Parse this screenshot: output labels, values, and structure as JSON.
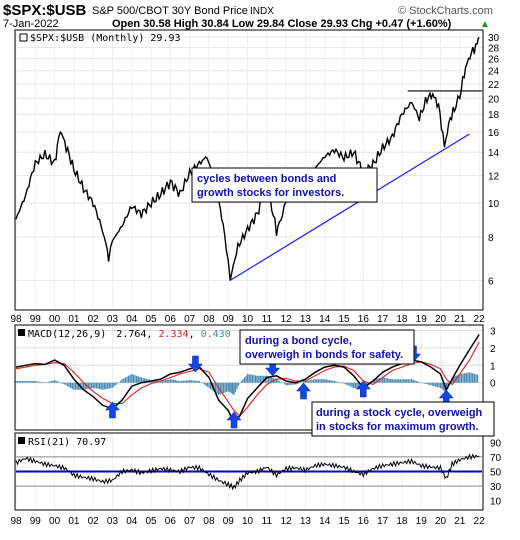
{
  "header": {
    "symbol": "$SPX:$USB",
    "description": "S&P 500/CBOT 30Y Bond Price",
    "exchange": "INDX",
    "date": "7-Jan-2022",
    "watermark": "© StockCharts.com",
    "ohlc_text": "Open 30.58  High 30.84  Low 29.84  Close 29.93  Chg +0.47 (+1.60%)",
    "up_arrow": "▲"
  },
  "main_panel": {
    "legend": "$SPX:$USB (Monthly) 29.93",
    "annotation_lines": [
      "cycles between bonds and",
      "growth stocks for investors."
    ]
  },
  "macd_panel": {
    "legend_prefix": "MACD(12,26,9)",
    "macd_value": "2.764",
    "signal_value": "2.334",
    "hist_value": "0.430",
    "annotation_bond": [
      "during a bond cycle,",
      "overweigh in bonds for safety."
    ],
    "annotation_stock": [
      "during a stock cycle, overweigh",
      "in stocks for maximum growth."
    ]
  },
  "rsi_panel": {
    "legend": "RSI(21) 70.97"
  },
  "colors": {
    "price_line": "#000000",
    "trendline": "#1a1aff",
    "macd_line": "#000000",
    "signal_line": "#e02020",
    "histogram": "#4a8ab0",
    "arrow_fill": "#1446e6",
    "rsi_line": "#000000",
    "rsi_midline": "#0000cc"
  },
  "chart_data": [
    {
      "type": "line",
      "title": "$SPX:$USB (Monthly) 29.93",
      "x_tick_labels": [
        "98",
        "99",
        "00",
        "01",
        "02",
        "03",
        "04",
        "05",
        "06",
        "07",
        "08",
        "09",
        "10",
        "11",
        "12",
        "13",
        "14",
        "15",
        "16",
        "17",
        "18",
        "19",
        "20",
        "21",
        "22"
      ],
      "y_tick_labels": [
        "6",
        "8",
        "10",
        "12",
        "14",
        "16",
        "18",
        "20",
        "22",
        "24",
        "26",
        "28",
        "30"
      ],
      "ylim": [
        5,
        31
      ],
      "scale": "log",
      "series": [
        {
          "x": [
            1998.0,
            1998.5,
            1999.0,
            1999.5,
            2000.0,
            2000.3,
            2000.6,
            2001.0,
            2001.5,
            2002.0,
            2002.5,
            2002.8,
            2003.0,
            2003.5,
            2004.0,
            2004.5,
            2005.0,
            2005.5,
            2006.0,
            2006.5,
            2007.0,
            2007.5,
            2007.9,
            2008.5,
            2008.9,
            2009.1,
            2009.5,
            2010.0,
            2010.5,
            2011.0,
            2011.5,
            2011.8,
            2012.0,
            2012.5,
            2013.0,
            2013.5,
            2014.0,
            2014.5,
            2015.0,
            2015.5,
            2016.0,
            2016.5,
            2017.0,
            2017.5,
            2018.0,
            2018.5,
            2018.9,
            2019.3,
            2019.6,
            2019.9,
            2020.2,
            2020.5,
            2020.8,
            2021.0,
            2021.3,
            2021.6,
            2021.9,
            2022.0
          ],
          "y": [
            9.0,
            10.5,
            13.0,
            13.8,
            13.0,
            16.2,
            14.5,
            12.5,
            11.0,
            10.0,
            8.3,
            7.0,
            7.8,
            8.6,
            9.8,
            9.3,
            10.0,
            10.6,
            11.5,
            10.6,
            12.2,
            13.0,
            13.6,
            10.2,
            7.5,
            6.0,
            7.5,
            8.4,
            9.3,
            11.2,
            8.3,
            9.2,
            10.4,
            11.4,
            11.0,
            12.6,
            13.6,
            14.2,
            13.5,
            14.0,
            12.2,
            12.9,
            14.4,
            15.5,
            18.0,
            19.5,
            17.5,
            20.0,
            20.5,
            19.0,
            14.5,
            17.5,
            19.0,
            20.3,
            24.5,
            27.0,
            28.5,
            29.93
          ]
        }
      ],
      "resistance_level": 21,
      "trendline": {
        "x": [
          2009.1,
          2021.5
        ],
        "y": [
          6.0,
          15.8
        ]
      }
    },
    {
      "type": "line",
      "title": "MACD(12,26,9) 2.764, 2.334, 0.430",
      "x_tick_labels": [],
      "y_tick_labels": [
        "0",
        "1",
        "2",
        "3"
      ],
      "ylim": [
        -2.6,
        3.2
      ],
      "series": [
        {
          "name": "MACD(12,26,9) 2.764",
          "x": [
            1998.0,
            1998.5,
            1999.0,
            1999.5,
            2000.0,
            2000.5,
            2001.0,
            2001.5,
            2002.0,
            2002.5,
            2003.0,
            2003.5,
            2004.0,
            2004.5,
            2005.0,
            2005.5,
            2006.0,
            2006.5,
            2007.0,
            2007.5,
            2008.0,
            2008.5,
            2009.0,
            2009.3,
            2009.6,
            2010.0,
            2010.5,
            2011.0,
            2011.5,
            2012.0,
            2012.5,
            2013.0,
            2013.5,
            2014.0,
            2014.5,
            2015.0,
            2015.5,
            2016.0,
            2016.5,
            2017.0,
            2017.5,
            2018.0,
            2018.5,
            2019.0,
            2019.5,
            2020.0,
            2020.3,
            2020.6,
            2021.0,
            2021.5,
            2022.0
          ],
          "y": [
            0.9,
            1.0,
            1.1,
            1.05,
            1.3,
            1.0,
            0.2,
            -0.4,
            -0.8,
            -1.3,
            -1.5,
            -1.0,
            -0.2,
            0.0,
            0.1,
            0.2,
            0.5,
            0.6,
            0.8,
            0.9,
            0.3,
            -1.0,
            -1.6,
            -2.3,
            -1.9,
            -0.9,
            -0.3,
            0.3,
            0.4,
            0.1,
            0.0,
            0.2,
            0.6,
            0.9,
            1.0,
            0.9,
            0.4,
            -0.3,
            0.1,
            0.6,
            0.9,
            1.1,
            1.3,
            1.2,
            0.9,
            0.5,
            -0.4,
            0.2,
            1.0,
            1.9,
            2.764
          ]
        },
        {
          "name": "2.334",
          "x": [
            1998.0,
            1998.5,
            1999.0,
            1999.5,
            2000.0,
            2000.5,
            2001.0,
            2001.5,
            2002.0,
            2002.5,
            2003.0,
            2003.5,
            2004.0,
            2004.5,
            2005.0,
            2005.5,
            2006.0,
            2006.5,
            2007.0,
            2007.5,
            2008.0,
            2008.5,
            2009.0,
            2009.3,
            2009.6,
            2010.0,
            2010.5,
            2011.0,
            2011.5,
            2012.0,
            2012.5,
            2013.0,
            2013.5,
            2014.0,
            2014.5,
            2015.0,
            2015.5,
            2016.0,
            2016.5,
            2017.0,
            2017.5,
            2018.0,
            2018.5,
            2019.0,
            2019.5,
            2020.0,
            2020.3,
            2020.6,
            2021.0,
            2021.5,
            2022.0
          ],
          "y": [
            0.8,
            0.9,
            1.0,
            1.05,
            1.15,
            1.1,
            0.6,
            0.0,
            -0.5,
            -0.9,
            -1.2,
            -1.2,
            -0.7,
            -0.3,
            -0.05,
            0.1,
            0.3,
            0.5,
            0.65,
            0.8,
            0.6,
            -0.3,
            -1.1,
            -1.6,
            -1.9,
            -1.4,
            -0.7,
            -0.1,
            0.2,
            0.25,
            0.1,
            0.1,
            0.4,
            0.7,
            0.9,
            0.95,
            0.7,
            0.1,
            -0.1,
            0.3,
            0.7,
            0.9,
            1.1,
            1.2,
            1.05,
            0.8,
            0.2,
            -0.1,
            0.5,
            1.3,
            2.334
          ]
        }
      ],
      "histogram": {
        "name": "0.430",
        "x": [
          1998.0,
          1998.5,
          1999.0,
          1999.5,
          2000.0,
          2000.5,
          2001.0,
          2001.5,
          2002.0,
          2002.5,
          2003.0,
          2003.5,
          2004.0,
          2004.5,
          2005.0,
          2005.5,
          2006.0,
          2006.5,
          2007.0,
          2007.5,
          2008.0,
          2008.5,
          2009.0,
          2009.3,
          2009.6,
          2010.0,
          2010.5,
          2011.0,
          2011.5,
          2012.0,
          2012.5,
          2013.0,
          2013.5,
          2014.0,
          2014.5,
          2015.0,
          2015.5,
          2016.0,
          2016.5,
          2017.0,
          2017.5,
          2018.0,
          2018.5,
          2019.0,
          2019.5,
          2020.0,
          2020.3,
          2020.6,
          2021.0,
          2021.5,
          2022.0
        ],
        "y": [
          0.1,
          0.1,
          0.1,
          0.0,
          0.15,
          -0.1,
          -0.4,
          -0.4,
          -0.3,
          -0.4,
          -0.3,
          0.2,
          0.5,
          0.3,
          0.15,
          0.1,
          0.2,
          0.1,
          0.15,
          0.1,
          -0.3,
          -0.7,
          -0.5,
          -0.7,
          0.0,
          0.5,
          0.4,
          0.4,
          0.2,
          -0.15,
          -0.1,
          0.1,
          0.2,
          0.2,
          0.1,
          -0.05,
          -0.3,
          -0.4,
          0.2,
          0.3,
          0.2,
          0.2,
          0.2,
          0.0,
          -0.15,
          -0.3,
          -0.6,
          0.3,
          0.5,
          0.6,
          0.43
        ]
      }
    },
    {
      "type": "line",
      "title": "RSI(21) 70.97",
      "x_tick_labels": [
        "98",
        "99",
        "00",
        "01",
        "02",
        "03",
        "04",
        "05",
        "06",
        "07",
        "08",
        "09",
        "10",
        "11",
        "12",
        "13",
        "14",
        "15",
        "16",
        "17",
        "18",
        "19",
        "20",
        "21",
        "22"
      ],
      "y_tick_labels": [
        "10",
        "30",
        "50",
        "70",
        "90"
      ],
      "ylim": [
        0,
        100
      ],
      "reference_lines": [
        30,
        50,
        70
      ],
      "series": [
        {
          "name": "RSI(21) 70.97",
          "x": [
            1998.0,
            1998.5,
            1999.0,
            1999.5,
            2000.0,
            2000.5,
            2001.0,
            2001.5,
            2002.0,
            2002.5,
            2003.0,
            2003.5,
            2004.0,
            2004.5,
            2005.0,
            2005.5,
            2006.0,
            2006.5,
            2007.0,
            2007.5,
            2008.0,
            2008.5,
            2009.0,
            2009.3,
            2009.6,
            2010.0,
            2010.5,
            2011.0,
            2011.5,
            2012.0,
            2012.5,
            2013.0,
            2013.5,
            2014.0,
            2014.5,
            2015.0,
            2015.5,
            2016.0,
            2016.5,
            2017.0,
            2017.5,
            2018.0,
            2018.5,
            2019.0,
            2019.5,
            2020.0,
            2020.3,
            2020.6,
            2021.0,
            2021.5,
            2022.0
          ],
          "y": [
            62,
            68,
            64,
            60,
            58,
            55,
            45,
            42,
            40,
            36,
            38,
            50,
            52,
            48,
            51,
            54,
            52,
            50,
            56,
            55,
            46,
            38,
            32,
            28,
            38,
            48,
            50,
            56,
            45,
            54,
            55,
            52,
            58,
            60,
            58,
            56,
            50,
            46,
            54,
            58,
            60,
            62,
            64,
            58,
            56,
            55,
            40,
            60,
            66,
            70,
            70.97
          ]
        }
      ]
    }
  ]
}
